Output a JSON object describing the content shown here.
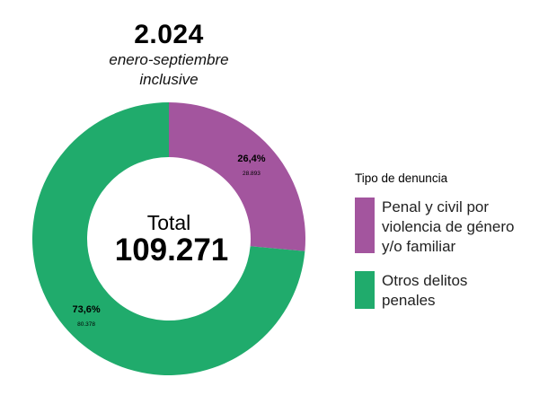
{
  "header": {
    "year": "2.024",
    "subtitle_line1": "enero-septiembre",
    "subtitle_line2": "inclusive"
  },
  "center": {
    "label": "Total",
    "value": "109.271"
  },
  "legend": {
    "title": "Tipo de denuncia",
    "items": [
      {
        "lines": [
          "Penal y civil por",
          "violencia de género",
          "y/o familiar"
        ],
        "color": "#a3559e"
      },
      {
        "lines": [
          "Otros delitos",
          "penales"
        ],
        "color": "#20ab6c"
      }
    ]
  },
  "chart_data": {
    "type": "pie",
    "donut": true,
    "total": 109271,
    "slices": [
      {
        "name": "Penal y civil por violencia de género y/o familiar",
        "value": 28893,
        "percent": 26.4,
        "percent_label": "26,4%",
        "value_label": "28.893",
        "color": "#a3559e"
      },
      {
        "name": "Otros delitos penales",
        "value": 80378,
        "percent": 73.6,
        "percent_label": "73,6%",
        "value_label": "80.378",
        "color": "#20ab6c"
      }
    ]
  }
}
